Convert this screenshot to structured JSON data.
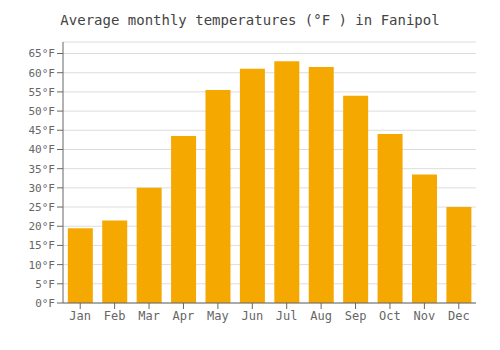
{
  "chart_data": {
    "type": "bar",
    "title": "Average monthly temperatures (°F ) in Fanipol",
    "categories": [
      "Jan",
      "Feb",
      "Mar",
      "Apr",
      "May",
      "Jun",
      "Jul",
      "Aug",
      "Sep",
      "Oct",
      "Nov",
      "Dec"
    ],
    "values": [
      19.5,
      21.5,
      30.0,
      43.5,
      55.5,
      61.0,
      63.0,
      61.5,
      54.0,
      44.0,
      33.5,
      25.0
    ],
    "color": "#F5A800",
    "ylim": [
      0,
      68
    ],
    "yticks": [
      {
        "value": 0,
        "label": "0°F"
      },
      {
        "value": 5,
        "label": "5°F"
      },
      {
        "value": 10,
        "label": "10°F"
      },
      {
        "value": 15,
        "label": "15°F"
      },
      {
        "value": 20,
        "label": "20°F"
      },
      {
        "value": 25,
        "label": "25°F"
      },
      {
        "value": 30,
        "label": "30°F"
      },
      {
        "value": 35,
        "label": "35°F"
      },
      {
        "value": 40,
        "label": "40°F"
      },
      {
        "value": 45,
        "label": "45°F"
      },
      {
        "value": 50,
        "label": "50°F"
      },
      {
        "value": 55,
        "label": "55°F"
      },
      {
        "value": 60,
        "label": "60°F"
      },
      {
        "value": 65,
        "label": "65°F"
      }
    ],
    "grid": true
  }
}
